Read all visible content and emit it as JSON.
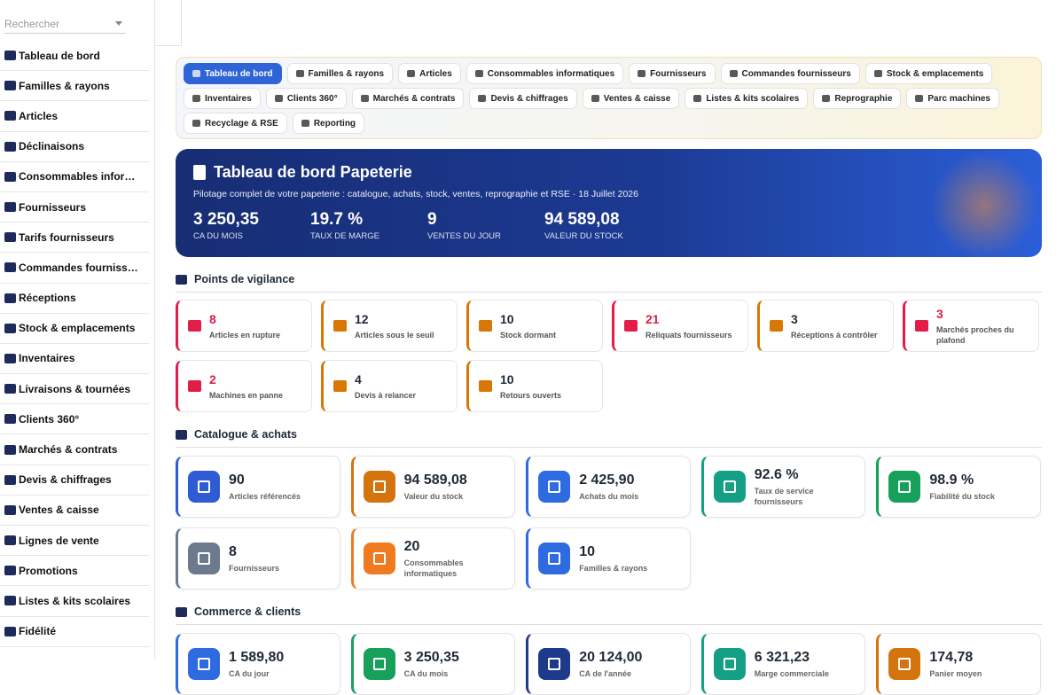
{
  "sidebar": {
    "search_placeholder": "Rechercher",
    "items": [
      "Tableau de bord",
      "Familles & rayons",
      "Articles",
      "Déclinaisons",
      "Consommables informatiques",
      "Fournisseurs",
      "Tarifs fournisseurs",
      "Commandes fournisseurs",
      "Réceptions",
      "Stock & emplacements",
      "Inventaires",
      "Livraisons & tournées",
      "Clients 360°",
      "Marchés & contrats",
      "Devis & chiffrages",
      "Ventes & caisse",
      "Lignes de vente",
      "Promotions",
      "Listes & kits scolaires",
      "Fidélité"
    ]
  },
  "tabs": {
    "active": 0,
    "items": [
      "Tableau de bord",
      "Familles & rayons",
      "Articles",
      "Consommables informatiques",
      "Fournisseurs",
      "Commandes fournisseurs",
      "Stock & emplacements",
      "Inventaires",
      "Clients 360°",
      "Marchés & contrats",
      "Devis & chiffrages",
      "Ventes & caisse",
      "Listes & kits scolaires",
      "Reprographie",
      "Parc machines",
      "Recyclage & RSE",
      "Reporting"
    ]
  },
  "hero": {
    "title": "Tableau de bord Papeterie",
    "subtitle": "Pilotage complet de votre papeterie : catalogue, achats, stock, ventes, reprographie et RSE · 18 Juillet 2026",
    "kpis": [
      {
        "value": "3 250,35",
        "label": "CA DU MOIS"
      },
      {
        "value": "19.7 %",
        "label": "TAUX DE MARGE"
      },
      {
        "value": "9",
        "label": "VENTES DU JOUR"
      },
      {
        "value": "94 589,08",
        "label": "VALEUR DU STOCK"
      }
    ]
  },
  "vigilance": {
    "title": "Points de vigilance",
    "alerts": [
      {
        "value": "8",
        "label": "Articles en rupture",
        "color": "#e11d48"
      },
      {
        "value": "12",
        "label": "Articles sous le seuil",
        "color": "#d97706"
      },
      {
        "value": "10",
        "label": "Stock dormant",
        "color": "#d97706"
      },
      {
        "value": "21",
        "label": "Reliquats fournisseurs",
        "color": "#e11d48"
      },
      {
        "value": "3",
        "label": "Réceptions à contrôler",
        "color": "#d97706"
      },
      {
        "value": "3",
        "label": "Marchés proches du plafond",
        "color": "#e11d48"
      },
      {
        "value": "2",
        "label": "Machines en panne",
        "color": "#e11d48"
      },
      {
        "value": "4",
        "label": "Devis à relancer",
        "color": "#d97706"
      },
      {
        "value": "10",
        "label": "Retours ouverts",
        "color": "#d97706"
      }
    ]
  },
  "catalogue": {
    "title": "Catalogue & achats",
    "cards": [
      {
        "value": "90",
        "label": "Articles référencés",
        "color": "#2f5bd3"
      },
      {
        "value": "94 589,08",
        "label": "Valeur du stock",
        "color": "#d4740f"
      },
      {
        "value": "2 425,90",
        "label": "Achats du mois",
        "color": "#2f6be0"
      },
      {
        "value": "92.6 %",
        "label": "Taux de service fournisseurs",
        "color": "#15a085"
      },
      {
        "value": "98.9 %",
        "label": "Fiabilité du stock",
        "color": "#17a05a"
      },
      {
        "value": "8",
        "label": "Fournisseurs",
        "color": "#6b7a8c"
      },
      {
        "value": "20",
        "label": "Consommables informatiques",
        "color": "#f07a1f"
      },
      {
        "value": "10",
        "label": "Familles & rayons",
        "color": "#2f6be0"
      }
    ]
  },
  "commerce": {
    "title": "Commerce & clients",
    "cards": [
      {
        "value": "1 589,80",
        "label": "CA du jour",
        "color": "#2f6be0"
      },
      {
        "value": "3 250,35",
        "label": "CA du mois",
        "color": "#17a05a"
      },
      {
        "value": "20 124,00",
        "label": "CA de l'année",
        "color": "#1e3a8a"
      },
      {
        "value": "6 321,23",
        "label": "Marge commerciale",
        "color": "#15a085"
      },
      {
        "value": "174,78",
        "label": "Panier moyen",
        "color": "#d4740f"
      }
    ]
  }
}
